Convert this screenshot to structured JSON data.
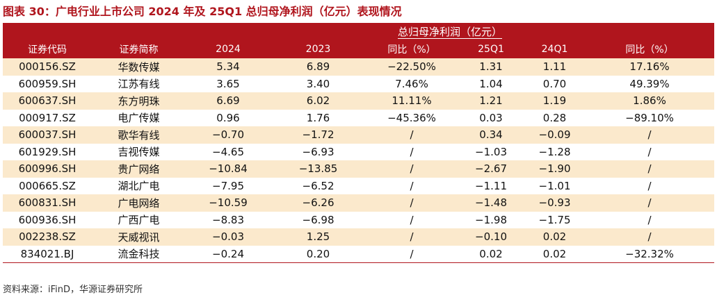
{
  "title": "图表 30：广电行业上市公司 2024 年及 25Q1 总归母净利润（亿元）表现情况",
  "group_header": "总归母净利润（亿元）",
  "columns": [
    "证券代码",
    "证券简称",
    "2024",
    "2023",
    "同比（%）",
    "25Q1",
    "24Q1",
    "同比（%）"
  ],
  "rows": [
    [
      "000156.SZ",
      "华数传媒",
      "5.34",
      "6.89",
      "−22.50%",
      "1.31",
      "1.11",
      "17.16%"
    ],
    [
      "600959.SH",
      "江苏有线",
      "3.65",
      "3.40",
      "7.46%",
      "1.04",
      "0.70",
      "49.39%"
    ],
    [
      "600637.SH",
      "东方明珠",
      "6.69",
      "6.02",
      "11.11%",
      "1.21",
      "1.19",
      "1.86%"
    ],
    [
      "000917.SZ",
      "电广传媒",
      "0.96",
      "1.76",
      "−45.36%",
      "0.03",
      "0.28",
      "−89.10%"
    ],
    [
      "600037.SH",
      "歌华有线",
      "−0.70",
      "−1.72",
      "/",
      "0.34",
      "−0.09",
      "/"
    ],
    [
      "601929.SH",
      "吉视传媒",
      "−4.65",
      "−6.93",
      "/",
      "−1.03",
      "−1.28",
      "/"
    ],
    [
      "600996.SH",
      "贵广网络",
      "−10.84",
      "−13.85",
      "/",
      "−2.67",
      "−1.90",
      "/"
    ],
    [
      "000665.SZ",
      "湖北广电",
      "−7.95",
      "−6.52",
      "/",
      "−1.11",
      "−1.01",
      "/"
    ],
    [
      "600831.SH",
      "广电网络",
      "−10.59",
      "−6.26",
      "/",
      "−1.48",
      "−0.93",
      "/"
    ],
    [
      "600936.SH",
      "广西广电",
      "−8.83",
      "−6.98",
      "/",
      "−1.98",
      "−1.75",
      "/"
    ],
    [
      "002238.SZ",
      "天威视讯",
      "−0.03",
      "1.25",
      "/",
      "−0.10",
      "0.02",
      "/"
    ],
    [
      "834021.BJ",
      "流金科技",
      "−0.24",
      "0.20",
      "/",
      "0.02",
      "0.02",
      "−32.32%"
    ]
  ],
  "source": "资料来源：iFinD，华源证券研究所",
  "colors": {
    "header_bg": "#b0151d",
    "title_color": "#b0151d",
    "stripe_bg": "#fbe9cc"
  }
}
